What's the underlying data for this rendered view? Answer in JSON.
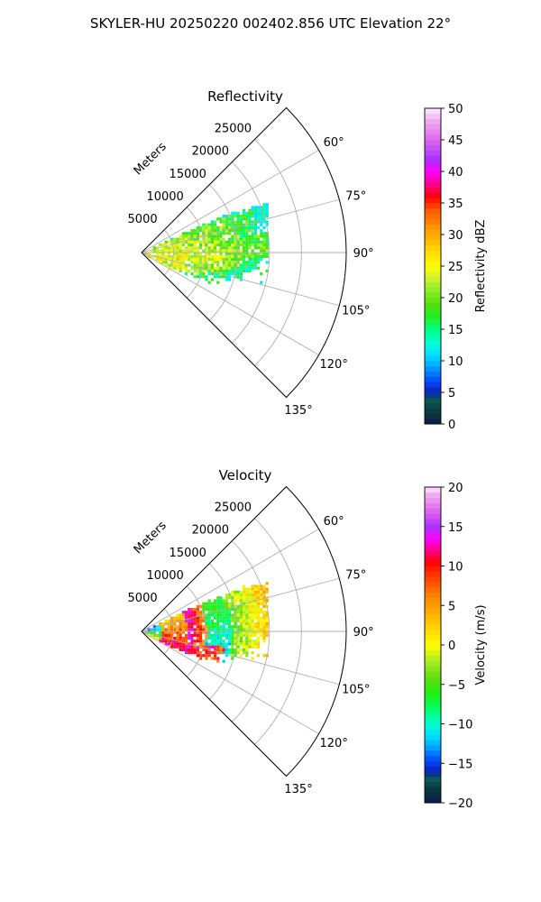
{
  "figure_title": "SKYLER-HU  20250220  002402.856 UTC Elevation 22°",
  "chart_data": [
    {
      "type": "heatmap",
      "projection": "polar-sector",
      "title": "Reflectivity",
      "radial_axis_label": "Meters",
      "range_ticks": [
        5000,
        10000,
        15000,
        20000,
        25000
      ],
      "range_tick_labels": [
        "5000",
        "10000",
        "15000",
        "20000",
        "25000"
      ],
      "rmax": 32000,
      "azimuth_range": [
        45,
        135
      ],
      "azimuth_ticks": [
        60,
        75,
        90,
        105,
        120,
        135
      ],
      "azimuth_tick_labels": [
        "60°",
        "75°",
        "90°",
        "105°",
        "120°",
        "135°"
      ],
      "grid": true,
      "colorbar": {
        "label": "Reflectivity dBZ",
        "min": 0,
        "max": 50,
        "ticks": [
          0,
          5,
          10,
          15,
          20,
          25,
          30,
          35,
          40,
          45,
          50
        ],
        "tick_labels": [
          "0",
          "5",
          "10",
          "15",
          "20",
          "25",
          "30",
          "35",
          "40",
          "45",
          "50"
        ],
        "stops": [
          {
            "v": 0,
            "c": "#0b1a4a"
          },
          {
            "v": 2,
            "c": "#0a3d3d"
          },
          {
            "v": 4,
            "c": "#0d5a55"
          },
          {
            "v": 5,
            "c": "#0a1fb8"
          },
          {
            "v": 7,
            "c": "#0050ff"
          },
          {
            "v": 9,
            "c": "#00a0ff"
          },
          {
            "v": 11,
            "c": "#00e0ff"
          },
          {
            "v": 13,
            "c": "#00ffd0"
          },
          {
            "v": 15,
            "c": "#00ff80"
          },
          {
            "v": 17,
            "c": "#22f022"
          },
          {
            "v": 19,
            "c": "#55dd11"
          },
          {
            "v": 21,
            "c": "#88ee22"
          },
          {
            "v": 23,
            "c": "#ccf033"
          },
          {
            "v": 25,
            "c": "#ffff00"
          },
          {
            "v": 28,
            "c": "#ffd000"
          },
          {
            "v": 31,
            "c": "#ff9900"
          },
          {
            "v": 34,
            "c": "#ff5500"
          },
          {
            "v": 36,
            "c": "#ff0000"
          },
          {
            "v": 38,
            "c": "#ff0088"
          },
          {
            "v": 40,
            "c": "#ff00ff"
          },
          {
            "v": 42,
            "c": "#aa33ff"
          },
          {
            "v": 45,
            "c": "#dd66ee"
          },
          {
            "v": 48,
            "c": "#f0aaf0"
          },
          {
            "v": 50,
            "c": "#ffe8ff"
          }
        ]
      }
    },
    {
      "type": "heatmap",
      "projection": "polar-sector",
      "title": "Velocity",
      "radial_axis_label": "Meters",
      "range_ticks": [
        5000,
        10000,
        15000,
        20000,
        25000
      ],
      "range_tick_labels": [
        "5000",
        "10000",
        "15000",
        "20000",
        "25000"
      ],
      "rmax": 32000,
      "azimuth_range": [
        45,
        135
      ],
      "azimuth_ticks": [
        60,
        75,
        90,
        105,
        120,
        135
      ],
      "azimuth_tick_labels": [
        "60°",
        "75°",
        "90°",
        "105°",
        "120°",
        "135°"
      ],
      "grid": true,
      "colorbar": {
        "label": "Velocity (m/s)",
        "min": -20,
        "max": 20,
        "ticks": [
          -20,
          -15,
          -10,
          -5,
          0,
          5,
          10,
          15,
          20
        ],
        "tick_labels": [
          "−20",
          "−15",
          "−10",
          "−5",
          "0",
          "5",
          "10",
          "15",
          "20"
        ],
        "stops": [
          {
            "v": -20,
            "c": "#0b1a4a"
          },
          {
            "v": -18,
            "c": "#0a3d3d"
          },
          {
            "v": -17,
            "c": "#0d5a55"
          },
          {
            "v": -16,
            "c": "#0a1fb8"
          },
          {
            "v": -14.5,
            "c": "#0050ff"
          },
          {
            "v": -13,
            "c": "#00a0ff"
          },
          {
            "v": -11.5,
            "c": "#00e0ff"
          },
          {
            "v": -10,
            "c": "#00ffd0"
          },
          {
            "v": -8,
            "c": "#00ff60"
          },
          {
            "v": -6,
            "c": "#22ee11"
          },
          {
            "v": -4,
            "c": "#66dd11"
          },
          {
            "v": -2,
            "c": "#aaee22"
          },
          {
            "v": 0,
            "c": "#ffff00"
          },
          {
            "v": 3,
            "c": "#ffc400"
          },
          {
            "v": 6,
            "c": "#ff8800"
          },
          {
            "v": 9,
            "c": "#ff3300"
          },
          {
            "v": 10.5,
            "c": "#ff0000"
          },
          {
            "v": 12,
            "c": "#ff0088"
          },
          {
            "v": 13.5,
            "c": "#ff00ff"
          },
          {
            "v": 15,
            "c": "#aa33ff"
          },
          {
            "v": 17,
            "c": "#dd66ee"
          },
          {
            "v": 19,
            "c": "#f0aaf0"
          },
          {
            "v": 20,
            "c": "#ffe8ff"
          }
        ]
      }
    }
  ]
}
